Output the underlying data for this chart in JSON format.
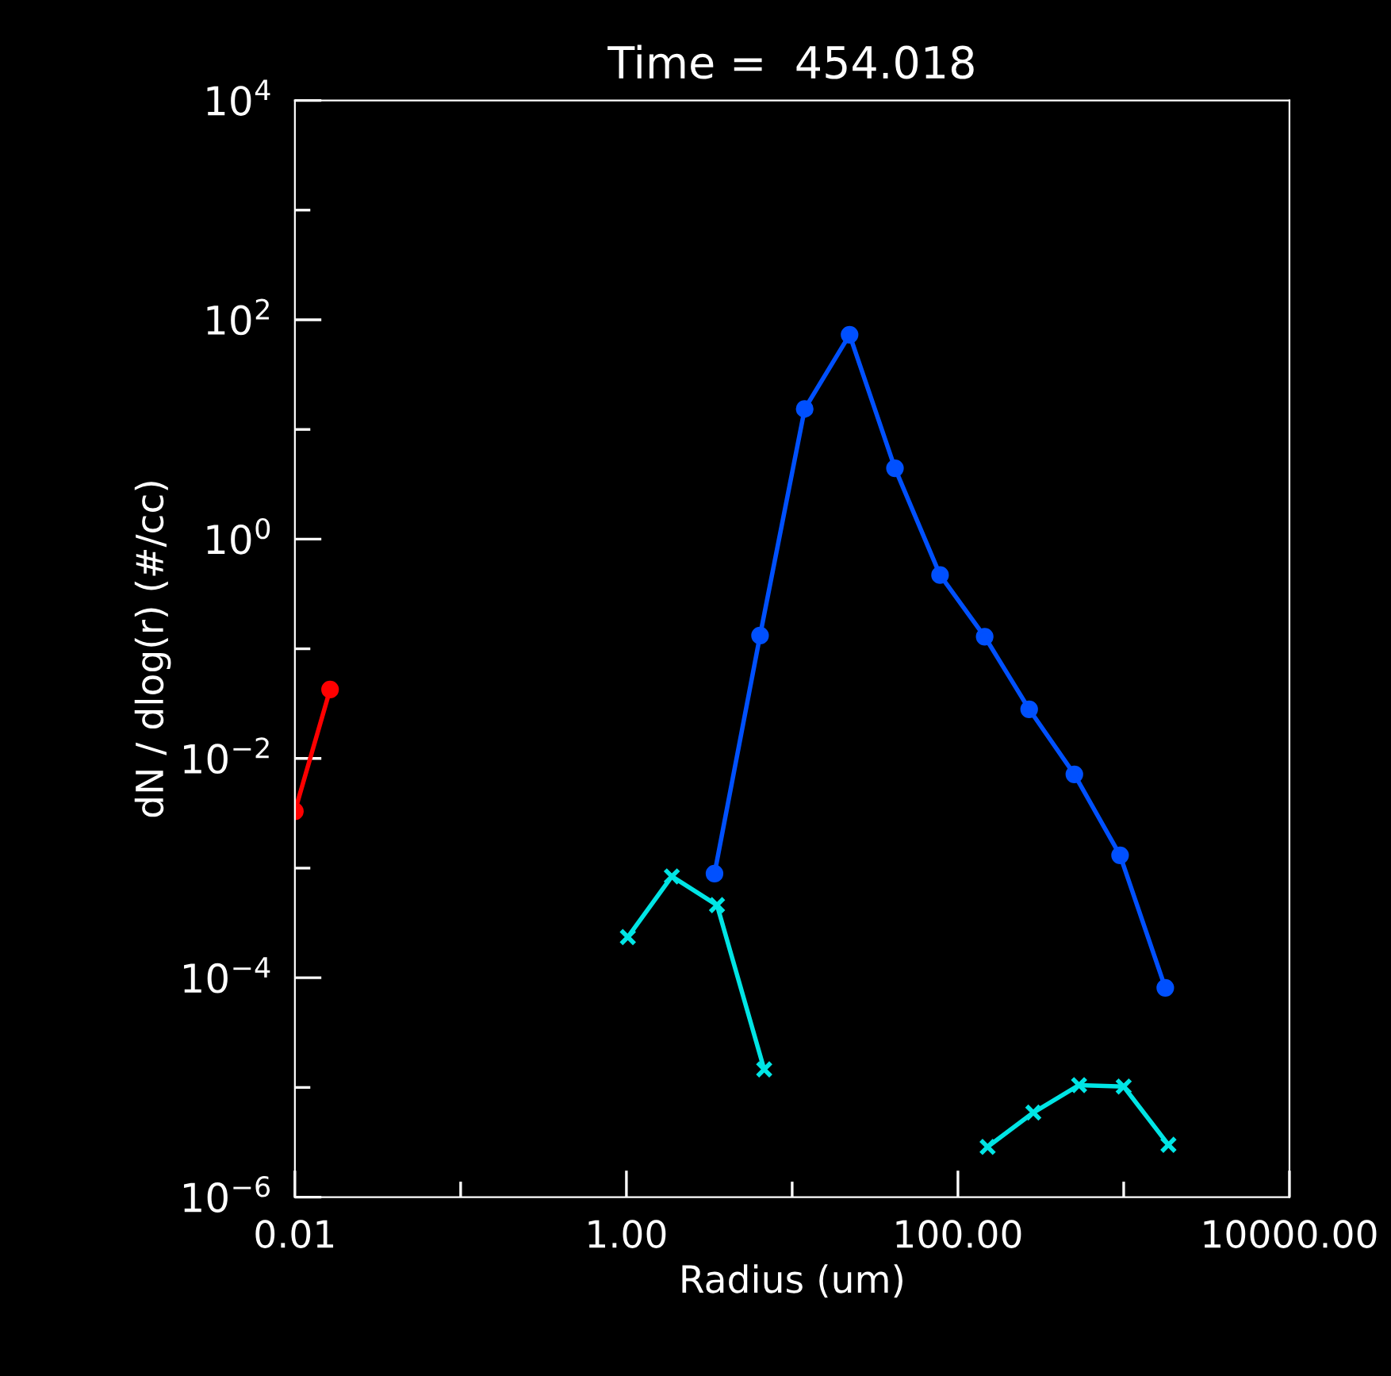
{
  "chart_data": {
    "type": "line",
    "title": "Time =  454.018",
    "xlabel": "Radius (um)",
    "ylabel": "dN / dlog(r) (#/cc)",
    "log": "xy",
    "grid": false,
    "legend": false,
    "xlim": [
      0.01,
      10000
    ],
    "ylim": [
      1e-06,
      10000
    ],
    "xticks": [
      0.01,
      {
        "value": 0.1,
        "label": null
      },
      {
        "value": 1,
        "label": "1.00"
      },
      {
        "value": 10,
        "label": null
      },
      {
        "value": 100,
        "label": "100.00"
      },
      {
        "value": 1000,
        "label": null
      },
      {
        "value": 10000,
        "label": "10000.00"
      }
    ],
    "yticks": [
      {
        "value": 1e-06,
        "label": "10$^{−6}$"
      },
      {
        "value": 1e-05,
        "label": null
      },
      {
        "value": 0.0001,
        "label": "10$^{−4}$"
      },
      {
        "value": 0.001,
        "label": null
      },
      {
        "value": 0.01,
        "label": "10$^{−2}$"
      },
      {
        "value": 0.1,
        "label": null
      },
      {
        "value": 1,
        "label": "10$^{0}$"
      },
      {
        "value": 10,
        "label": null
      },
      {
        "value": 100,
        "label": "10$^{2}$"
      },
      {
        "value": 1000,
        "label": null
      },
      {
        "value": 10000,
        "label": "10$^{4}$"
      }
    ],
    "series": [
      {
        "color": "#ff0000",
        "marker": "circle",
        "x": [
          0.01,
          0.0163
        ],
        "values": [
          0.0033,
          0.0425
        ]
      },
      {
        "color": "#0050ff",
        "marker": "circle",
        "x": [
          3.4,
          6.4,
          11.9,
          22.2,
          41.7,
          78,
          145,
          269,
          504,
          951,
          1782
        ],
        "values": [
          0.00089,
          0.132,
          15.4,
          73,
          4.43,
          0.47,
          0.129,
          0.0281,
          0.00716,
          0.00131,
          8.1e-05
        ]
      },
      {
        "color": "#00e5e5",
        "marker": "cross",
        "x": [
          1.02,
          1.88,
          3.52,
          6.78,
          12.7,
          151,
          285,
          538,
          1000,
          1862
        ],
        "values": [
          0.000235,
          0.00084,
          0.00046,
          1.46e-05,
          null,
          2.87e-06,
          5.9e-06,
          1.05e-05,
          1.02e-05,
          3e-06
        ]
      }
    ]
  }
}
